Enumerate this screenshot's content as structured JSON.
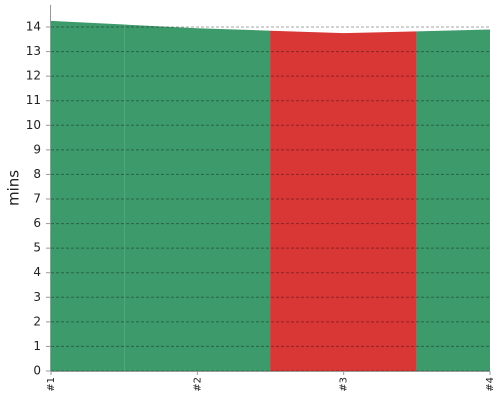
{
  "chart_data": {
    "type": "area",
    "y_label": "mins",
    "categories": [
      "#1",
      "#2",
      "#3",
      "#4"
    ],
    "values": [
      14.25,
      13.95,
      13.75,
      13.9
    ],
    "colors": [
      "#3d9a6b",
      "#3d9a6b",
      "#d93636",
      "#3d9a6b"
    ],
    "ylim": [
      0,
      14.9
    ],
    "yticks": [
      0,
      1,
      2,
      3,
      4,
      5,
      6,
      7,
      8,
      9,
      10,
      11,
      12,
      13,
      14
    ],
    "grid": true
  }
}
